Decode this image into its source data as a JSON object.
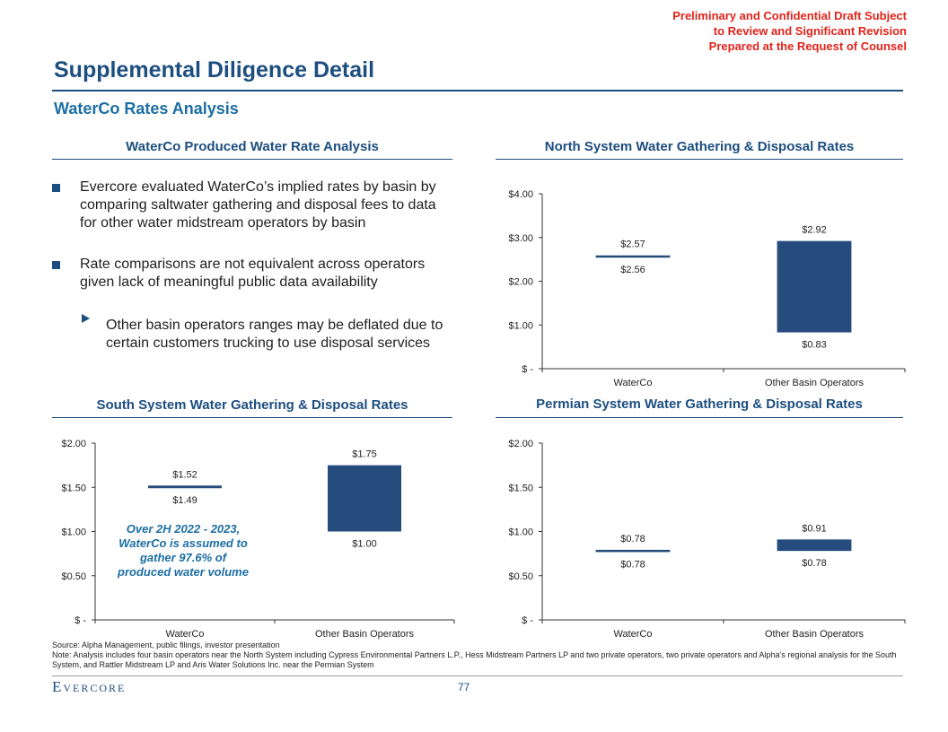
{
  "confidential": [
    "Preliminary and Confidential Draft Subject",
    "to Review and Significant Revision",
    "Prepared at the Request of Counsel"
  ],
  "title": "Supplemental Diligence Detail",
  "subtitle": "WaterCo Rates Analysis",
  "left_section": {
    "heading": "WaterCo Produced Water Rate Analysis",
    "bullets": [
      "Evercore evaluated WaterCo’s implied rates by basin by comparing saltwater gathering and disposal fees to data for other water midstream operators by basin",
      "Rate comparisons are not equivalent across operators given lack of meaningful public data availability"
    ],
    "sub_bullets": [
      "Other basin operators ranges may be deflated due to certain customers trucking to use disposal services"
    ]
  },
  "annotation": "Over 2H 2022 - 2023, WaterCo is assumed to gather 97.6% of produced water volume",
  "colors": {
    "bar": "#264c7e",
    "accent": "#1c4e80",
    "confidential": "#e2231a"
  },
  "chart_data": [
    {
      "id": "north",
      "type": "bar",
      "title": "North System Water Gathering & Disposal Rates",
      "categories": [
        "WaterCo",
        "Other Basin Operators"
      ],
      "ranges": [
        [
          2.56,
          2.57
        ],
        [
          0.83,
          2.92
        ]
      ],
      "labels_high": [
        "$2.57",
        "$2.92"
      ],
      "labels_low": [
        "$2.56",
        "$0.83"
      ],
      "ylim": [
        0,
        4
      ],
      "yticks": [
        0,
        1,
        2,
        3,
        4
      ],
      "ytick_labels": [
        "$ -",
        "$1.00",
        "$2.00",
        "$3.00",
        "$4.00"
      ]
    },
    {
      "id": "south",
      "type": "bar",
      "title": "South System Water Gathering & Disposal Rates",
      "categories": [
        "WaterCo",
        "Other Basin Operators"
      ],
      "ranges": [
        [
          1.49,
          1.52
        ],
        [
          1.0,
          1.75
        ]
      ],
      "labels_high": [
        "$1.52",
        "$1.75"
      ],
      "labels_low": [
        "$1.49",
        "$1.00"
      ],
      "ylim": [
        0,
        2
      ],
      "yticks": [
        0,
        0.5,
        1,
        1.5,
        2
      ],
      "ytick_labels": [
        "$ -",
        "$0.50",
        "$1.00",
        "$1.50",
        "$2.00"
      ]
    },
    {
      "id": "permian",
      "type": "bar",
      "title": "Permian System Water Gathering & Disposal Rates",
      "categories": [
        "WaterCo",
        "Other Basin Operators"
      ],
      "ranges": [
        [
          0.78,
          0.78
        ],
        [
          0.78,
          0.91
        ]
      ],
      "labels_high": [
        "$0.78",
        "$0.91"
      ],
      "labels_low": [
        "$0.78",
        "$0.78"
      ],
      "ylim": [
        0,
        2
      ],
      "yticks": [
        0,
        0.5,
        1,
        1.5,
        2
      ],
      "ytick_labels": [
        "$ -",
        "$0.50",
        "$1.00",
        "$1.50",
        "$2.00"
      ]
    }
  ],
  "source_note": "Source: Alpha Management, public filings, investor presentation",
  "note": "Note: Analysis includes four basin operators near the North System including Cypress Environmental Partners L.P., Hess Midstream Partners LP and two private operators, two private operators and Alpha’s regional analysis for the South System, and Rattler Midstream LP and Aris Water Solutions Inc. near the Permian System",
  "footer": {
    "logo": "Evercore",
    "page": "77"
  }
}
